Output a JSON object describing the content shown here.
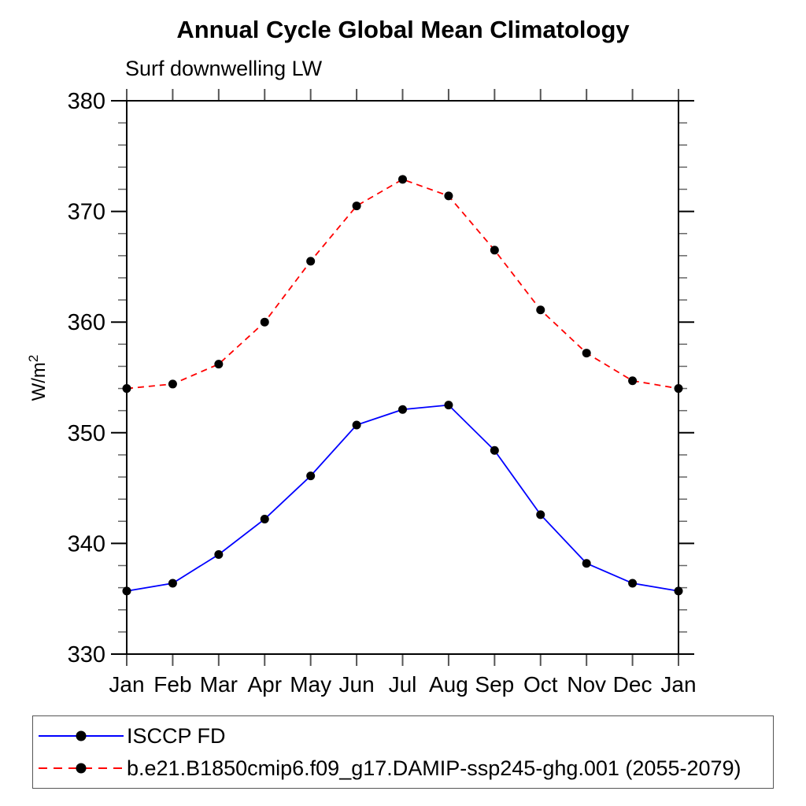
{
  "chart_data": {
    "type": "line",
    "title": "Annual Cycle Global Mean Climatology",
    "subtitle": "Surf downwelling LW",
    "ylabel": "W/m²",
    "xlabel": "",
    "categories": [
      "Jan",
      "Feb",
      "Mar",
      "Apr",
      "May",
      "Jun",
      "Jul",
      "Aug",
      "Sep",
      "Oct",
      "Nov",
      "Dec",
      "Jan"
    ],
    "ylim": [
      330,
      380
    ],
    "ytick_major_step": 10,
    "ytick_minor_step": 2,
    "ytick_labels": [
      "330",
      "340",
      "350",
      "360",
      "370",
      "380"
    ],
    "grid": false,
    "legend_position": "bottom-left-box",
    "marker": "filled-circle",
    "marker_color": "#000000",
    "series": [
      {
        "name": "ISCCP FD",
        "color": "#0000ff",
        "line_style": "solid",
        "values": [
          335.7,
          336.4,
          339.0,
          342.2,
          346.1,
          350.7,
          352.1,
          352.5,
          348.4,
          342.6,
          338.2,
          336.4,
          335.7
        ]
      },
      {
        "name": "b.e21.B1850cmip6.f09_g17.DAMIP-ssp245-ghg.001 (2055-2079)",
        "color": "#ff0000",
        "line_style": "dashed",
        "values": [
          354.0,
          354.4,
          356.2,
          360.0,
          365.5,
          370.5,
          372.9,
          371.4,
          366.5,
          361.1,
          357.2,
          354.7,
          354.0
        ]
      }
    ],
    "axis_colors": {
      "frame": "#000000",
      "major_tick": "#000000",
      "minor_tick": "#666666",
      "month_tick": "#555555"
    }
  }
}
